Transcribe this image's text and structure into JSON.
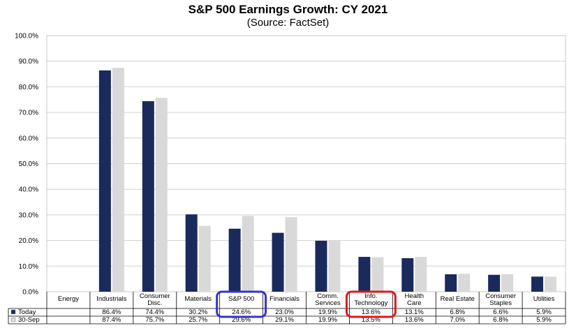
{
  "title": "S&P 500 Earnings Growth: CY 2021",
  "subtitle": "(Source: FactSet)",
  "chart_data": {
    "type": "bar",
    "categories": [
      [
        "Energy"
      ],
      [
        "Industrials"
      ],
      [
        "Consumer",
        "Disc."
      ],
      [
        "Materials"
      ],
      [
        "S&P 500"
      ],
      [
        "Financials"
      ],
      [
        "Comm.",
        "Services"
      ],
      [
        "Info.",
        "Technology"
      ],
      [
        "Health",
        "Care"
      ],
      [
        "Real Estate"
      ],
      [
        "Consumer",
        "Staples"
      ],
      [
        "Utilities"
      ]
    ],
    "series": [
      {
        "name": "Today",
        "color": "#1b2a5c",
        "values": [
          null,
          86.4,
          74.4,
          30.2,
          24.6,
          23.0,
          19.9,
          13.6,
          13.1,
          6.8,
          6.6,
          5.9
        ],
        "labels": [
          "",
          "86.4%",
          "74.4%",
          "30.2%",
          "24.6%",
          "23.0%",
          "19.9%",
          "13.6%",
          "13.1%",
          "6.8%",
          "6.6%",
          "5.9%"
        ]
      },
      {
        "name": "30-Sep",
        "color": "#d9d9d9",
        "values": [
          null,
          87.4,
          75.7,
          25.7,
          29.6,
          29.1,
          19.9,
          13.5,
          13.6,
          7.0,
          6.8,
          5.9
        ],
        "labels": [
          "",
          "87.4%",
          "75.7%",
          "25.7%",
          "29.6%",
          "29.1%",
          "19.9%",
          "13.5%",
          "13.6%",
          "7.0%",
          "6.8%",
          "5.9%"
        ]
      }
    ],
    "ylim": [
      0,
      100
    ],
    "yticks": [
      "0.0%",
      "10.0%",
      "20.0%",
      "30.0%",
      "40.0%",
      "50.0%",
      "60.0%",
      "70.0%",
      "80.0%",
      "90.0%",
      "100.0%"
    ],
    "grid": true,
    "legend": "data-table",
    "highlights": [
      {
        "category_index": 4,
        "color": "#3333cc"
      },
      {
        "category_index": 7,
        "color": "#e01818"
      }
    ]
  }
}
